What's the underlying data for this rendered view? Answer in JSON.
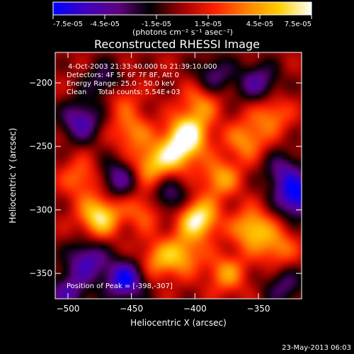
{
  "chart_data": {
    "type": "heatmap",
    "title": "Reconstructed RHESSI Image",
    "colorbar": {
      "ticks": [
        "-7.5e-05",
        "-4.5e-05",
        "-1.5e-05",
        "1.5e-05",
        "4.5e-05",
        "7.5e-05"
      ],
      "tick_values": [
        -7.5e-05,
        -4.5e-05,
        -1.5e-05,
        1.5e-05,
        4.5e-05,
        7.5e-05
      ],
      "range": [
        -7.5e-05,
        7.5e-05
      ],
      "unit_label": "(photons cm⁻² s⁻¹ asec⁻²)",
      "colors": [
        "#0000ff",
        "#4000c0",
        "#600080",
        "#000000",
        "#a00000",
        "#ff2000",
        "#ff8000",
        "#ffd000",
        "#ffffff"
      ]
    },
    "xlabel": "Heliocentric X (arcsec)",
    "ylabel": "Heliocentric Y (arcsec)",
    "xlim": [
      -510,
      -316
    ],
    "ylim": [
      -370,
      -176
    ],
    "xticks": [
      -500,
      -450,
      -400,
      -350
    ],
    "yticks": [
      -350,
      -300,
      -250,
      -200
    ],
    "xtick_labels": [
      "−500",
      "−450",
      "−400",
      "−350"
    ],
    "ytick_labels": [
      "−350",
      "−300",
      "−250",
      "−200"
    ],
    "peak": {
      "x": -398,
      "y": -307
    },
    "annotations": [
      "4-Oct-2003 21:33:40.000 to 21:39:10.000",
      "Detectors: 4F 5F 6F 7F 8F, Att 0",
      "Energy Range: 25.0 - 50.0 keV",
      "Clean     Total counts: 5.54E+03"
    ],
    "peak_label": "Position of Peak = [-398,-307]",
    "blobs": [
      {
        "x": -395,
        "y": -215,
        "v": 0.5
      },
      {
        "x": -405,
        "y": -240,
        "v": 0.95
      },
      {
        "x": -415,
        "y": -255,
        "v": 0.75
      },
      {
        "x": -398,
        "y": -307,
        "v": 1.0
      },
      {
        "x": -475,
        "y": -305,
        "v": 0.9
      },
      {
        "x": -490,
        "y": -275,
        "v": 0.45
      },
      {
        "x": -435,
        "y": -265,
        "v": 0.65
      },
      {
        "x": -450,
        "y": -238,
        "v": 0.5
      },
      {
        "x": -460,
        "y": -210,
        "v": 0.4
      },
      {
        "x": -380,
        "y": -275,
        "v": 0.6
      },
      {
        "x": -360,
        "y": -245,
        "v": 0.55
      },
      {
        "x": -340,
        "y": -225,
        "v": 0.5
      },
      {
        "x": -355,
        "y": -315,
        "v": 0.75
      },
      {
        "x": -335,
        "y": -330,
        "v": 0.5
      },
      {
        "x": -410,
        "y": -335,
        "v": 0.6
      },
      {
        "x": -430,
        "y": -340,
        "v": 0.5
      },
      {
        "x": -440,
        "y": -300,
        "v": 0.45
      },
      {
        "x": -375,
        "y": -350,
        "v": 0.55
      },
      {
        "x": -470,
        "y": -200,
        "v": -0.55
      },
      {
        "x": -490,
        "y": -230,
        "v": -0.7
      },
      {
        "x": -455,
        "y": -355,
        "v": -0.95
      },
      {
        "x": -485,
        "y": -340,
        "v": -0.7
      },
      {
        "x": -320,
        "y": -290,
        "v": -0.95
      },
      {
        "x": -350,
        "y": -200,
        "v": -0.6
      },
      {
        "x": -460,
        "y": -275,
        "v": -0.6
      },
      {
        "x": -420,
        "y": -290,
        "v": -0.55
      },
      {
        "x": -330,
        "y": -270,
        "v": -0.55
      },
      {
        "x": -385,
        "y": -195,
        "v": -0.5
      },
      {
        "x": -500,
        "y": -365,
        "v": -0.6
      },
      {
        "x": -330,
        "y": -360,
        "v": -0.45
      }
    ]
  },
  "footer": {
    "date": "23-May-2013 06:03"
  }
}
